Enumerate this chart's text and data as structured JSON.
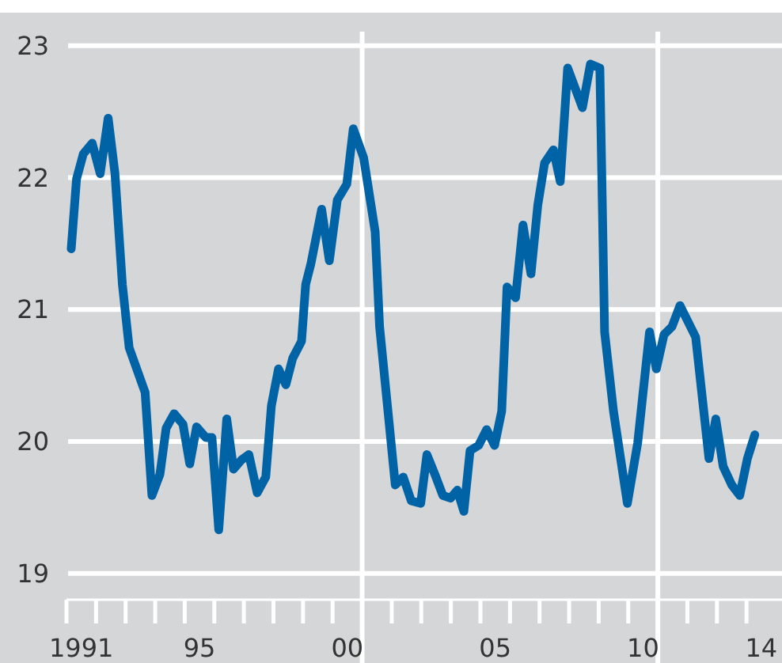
{
  "chart_data": {
    "type": "line",
    "xlim": [
      1990.5,
      2014.7
    ],
    "ylim": [
      18.8,
      23.25
    ],
    "yticks": [
      19,
      20,
      21,
      22,
      23
    ],
    "xticks": [
      {
        "value": 1990.5,
        "label": null
      },
      {
        "value": 1991.5,
        "label": null
      },
      {
        "value": 1992.5,
        "label": null
      },
      {
        "value": 1993.5,
        "label": null
      },
      {
        "value": 1994.5,
        "label": null
      },
      {
        "value": 1995.5,
        "label": null
      },
      {
        "value": 1996.5,
        "label": null
      },
      {
        "value": 1997.5,
        "label": null
      },
      {
        "value": 1998.5,
        "label": null
      },
      {
        "value": 1999.5,
        "label": null
      },
      {
        "value": 2000.5,
        "label": null
      },
      {
        "value": 2001.5,
        "label": null
      },
      {
        "value": 2002.5,
        "label": null
      },
      {
        "value": 2003.5,
        "label": null
      },
      {
        "value": 2004.5,
        "label": null
      },
      {
        "value": 2005.5,
        "label": null
      },
      {
        "value": 2006.5,
        "label": null
      },
      {
        "value": 2007.5,
        "label": null
      },
      {
        "value": 2008.5,
        "label": null
      },
      {
        "value": 2009.5,
        "label": null
      },
      {
        "value": 2010.5,
        "label": null
      },
      {
        "value": 2011.5,
        "label": null
      },
      {
        "value": 2012.5,
        "label": null
      },
      {
        "value": 2013.5,
        "label": null
      },
      {
        "value": 1991,
        "label": "1991"
      },
      {
        "value": 1995,
        "label": "95"
      },
      {
        "value": 2000,
        "label": "00"
      },
      {
        "value": 2005,
        "label": "05"
      },
      {
        "value": 2010,
        "label": "10"
      },
      {
        "value": 2014,
        "label": "14"
      }
    ],
    "grid": "y",
    "ref_lines": [
      {
        "axis": "x",
        "value": 2000.5,
        "color": "#ffffff"
      },
      {
        "axis": "x",
        "value": 2010.5,
        "color": "#ffffff"
      }
    ],
    "series": [
      {
        "color": "#0063a6",
        "line_style": "solid",
        "marker": "none",
        "x": [
          1990.66,
          1990.84,
          1991.07,
          1991.37,
          1991.64,
          1991.91,
          1992.14,
          1992.39,
          1992.62,
          1993.16,
          1993.39,
          1993.66,
          1993.87,
          1994.14,
          1994.44,
          1994.67,
          1994.9,
          1995.21,
          1995.42,
          1995.65,
          1995.92,
          1996.15,
          1996.42,
          1996.67,
          1996.95,
          1997.24,
          1997.43,
          1997.67,
          1997.92,
          1998.15,
          1998.45,
          1998.59,
          1998.77,
          1999.13,
          1999.39,
          1999.66,
          1999.98,
          2000.2,
          2000.55,
          2000.94,
          2001.09,
          2001.62,
          2001.89,
          2002.16,
          2002.48,
          2002.69,
          2002.96,
          2003.23,
          2003.49,
          2003.72,
          2003.94,
          2004.15,
          2004.44,
          2004.71,
          2004.98,
          2005.22,
          2005.4,
          2005.69,
          2005.94,
          2006.21,
          2006.44,
          2006.67,
          2006.97,
          2007.2,
          2007.45,
          2007.95,
          2008.22,
          2008.54,
          2008.7,
          2009,
          2009.47,
          2009.82,
          2010.22,
          2010.45,
          2010.71,
          2010.98,
          2011.25,
          2011.78,
          2012.23,
          2012.46,
          2012.71,
          2013,
          2013.27,
          2013.53,
          2013.78
        ],
        "values": [
          21.46,
          21.99,
          22.18,
          22.26,
          22.03,
          22.45,
          22.03,
          21.19,
          20.71,
          20.37,
          19.59,
          19.75,
          20.1,
          20.21,
          20.13,
          19.83,
          20.11,
          20.03,
          20.03,
          19.33,
          20.17,
          19.79,
          19.86,
          19.9,
          19.61,
          19.73,
          20.27,
          20.55,
          20.43,
          20.63,
          20.76,
          21.19,
          21.35,
          21.76,
          21.37,
          21.83,
          21.95,
          22.37,
          22.15,
          21.59,
          20.87,
          19.67,
          19.73,
          19.55,
          19.53,
          19.9,
          19.75,
          19.59,
          19.57,
          19.63,
          19.47,
          19.93,
          19.97,
          20.09,
          19.97,
          20.23,
          21.17,
          21.09,
          21.64,
          21.27,
          21.79,
          22.11,
          22.21,
          21.97,
          22.83,
          22.53,
          22.86,
          22.83,
          20.83,
          20.23,
          19.53,
          19.99,
          20.83,
          20.55,
          20.81,
          20.87,
          21.03,
          20.79,
          19.87,
          20.17,
          19.81,
          19.67,
          19.59,
          19.87,
          20.05
        ]
      }
    ]
  }
}
